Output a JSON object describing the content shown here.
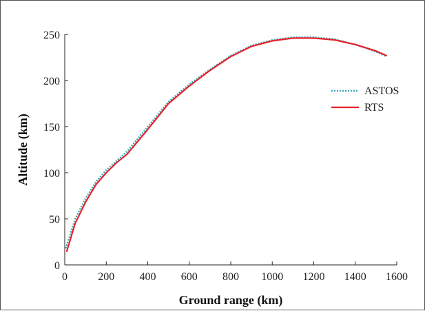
{
  "chart_data": {
    "type": "line",
    "title": "",
    "xlabel": "Ground range (km)",
    "ylabel": "Altitude (km)",
    "xlim": [
      0,
      1600
    ],
    "ylim": [
      0,
      250
    ],
    "xticks": [
      0,
      200,
      400,
      600,
      800,
      1000,
      1200,
      1400,
      1600
    ],
    "yticks": [
      0,
      50,
      100,
      150,
      200,
      250
    ],
    "grid": false,
    "legend_position": "right",
    "series": [
      {
        "name": "ASTOS",
        "color": "#2aa7b8",
        "style": "dotted",
        "x": [
          5,
          50,
          100,
          150,
          200,
          250,
          300,
          400,
          500,
          600,
          700,
          800,
          900,
          1000,
          1100,
          1200,
          1300,
          1400,
          1500,
          1550
        ],
        "y": [
          18,
          50,
          72,
          90,
          103,
          113,
          123,
          150,
          177,
          196,
          212,
          227,
          238,
          244,
          247,
          247,
          245,
          239,
          231,
          226
        ]
      },
      {
        "name": "RTS",
        "color": "#e8202a",
        "style": "solid",
        "x": [
          10,
          50,
          100,
          150,
          200,
          250,
          300,
          400,
          500,
          600,
          700,
          800,
          900,
          1000,
          1100,
          1200,
          1300,
          1400,
          1500,
          1550
        ],
        "y": [
          15,
          45,
          68,
          87,
          100,
          111,
          120,
          147,
          175,
          194,
          211,
          226,
          237,
          243,
          246,
          246,
          244,
          239,
          232,
          227
        ]
      }
    ]
  }
}
